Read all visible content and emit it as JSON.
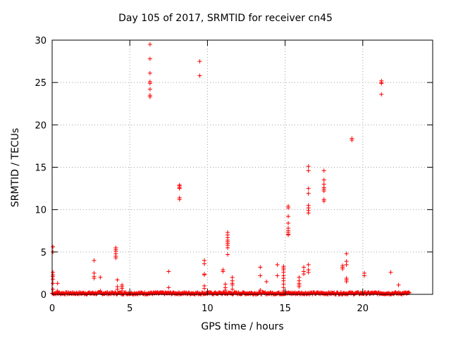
{
  "chart_data": {
    "type": "scatter",
    "title": "Day 105 of 2017, SRMTID for receiver cn45",
    "xlabel": "GPS time / hours",
    "ylabel": "SRMTID / TECUs",
    "xlim": [
      0,
      24.5
    ],
    "ylim": [
      0,
      30
    ],
    "xticks": [
      0,
      5,
      10,
      15,
      20
    ],
    "yticks": [
      0,
      5,
      10,
      15,
      20,
      25,
      30
    ],
    "grid": true,
    "marker": "+",
    "color": "#ff0000",
    "baseline": {
      "x_start": 0.0,
      "x_end": 23.0,
      "y_min": 0.0,
      "y_max": 0.25
    },
    "clusters": [
      {
        "x": 0.05,
        "y": [
          5.6,
          5.0,
          2.6,
          2.3,
          2.1,
          1.8,
          1.3,
          0.6
        ]
      },
      {
        "x": 0.35,
        "y": [
          1.3,
          0.4
        ]
      },
      {
        "x": 2.7,
        "y": [
          4.0,
          2.5,
          2.1,
          1.9
        ]
      },
      {
        "x": 3.1,
        "y": [
          2.0,
          0.4
        ]
      },
      {
        "x": 4.1,
        "y": [
          5.5,
          5.3,
          5.1,
          4.8,
          4.5,
          4.3
        ]
      },
      {
        "x": 4.2,
        "y": [
          1.7,
          0.9,
          0.6
        ]
      },
      {
        "x": 4.5,
        "y": [
          1.1,
          0.9,
          0.7,
          0.4
        ]
      },
      {
        "x": 6.3,
        "y": [
          29.5,
          27.8,
          26.1,
          25.1,
          24.9,
          24.2,
          23.5,
          23.3
        ]
      },
      {
        "x": 7.5,
        "y": [
          2.7,
          0.8
        ]
      },
      {
        "x": 8.2,
        "y": [
          12.9,
          12.8,
          12.6,
          12.5,
          11.4,
          11.2
        ]
      },
      {
        "x": 9.5,
        "y": [
          27.5,
          25.8
        ]
      },
      {
        "x": 9.8,
        "y": [
          4.0,
          3.6,
          2.4,
          2.3,
          1.0,
          0.7
        ]
      },
      {
        "x": 11.0,
        "y": [
          2.9,
          2.7
        ]
      },
      {
        "x": 11.15,
        "y": [
          1.2,
          0.8,
          0.5
        ]
      },
      {
        "x": 11.3,
        "y": [
          7.3,
          7.0,
          6.7,
          6.4,
          6.2,
          6.0,
          5.8,
          5.5,
          4.7
        ]
      },
      {
        "x": 11.6,
        "y": [
          2.0,
          1.6,
          1.3,
          1.1,
          0.6
        ]
      },
      {
        "x": 13.4,
        "y": [
          3.2,
          2.2,
          0.5
        ]
      },
      {
        "x": 13.8,
        "y": [
          1.5
        ]
      },
      {
        "x": 14.5,
        "y": [
          3.5,
          2.2
        ]
      },
      {
        "x": 14.9,
        "y": [
          3.3,
          3.1,
          2.9,
          2.6,
          2.2,
          1.9,
          1.6,
          1.2,
          0.8,
          0.4
        ]
      },
      {
        "x": 15.2,
        "y": [
          10.4,
          10.2,
          9.2,
          8.4,
          7.8,
          7.5,
          7.3,
          7.1,
          7.0
        ]
      },
      {
        "x": 15.9,
        "y": [
          2.0,
          1.6,
          1.3,
          1.1,
          0.9
        ]
      },
      {
        "x": 16.2,
        "y": [
          3.2,
          2.7,
          2.4
        ]
      },
      {
        "x": 16.5,
        "y": [
          15.1,
          14.6,
          12.5,
          11.9,
          10.5,
          10.2,
          9.9,
          9.6,
          3.5,
          2.9,
          2.6
        ]
      },
      {
        "x": 17.5,
        "y": [
          14.6,
          13.5,
          13.0,
          12.6,
          12.4,
          12.2,
          11.2,
          11.0
        ]
      },
      {
        "x": 18.7,
        "y": [
          3.4,
          3.2,
          3.0
        ]
      },
      {
        "x": 18.95,
        "y": [
          4.8,
          3.9,
          3.5,
          1.9,
          1.7,
          1.5
        ]
      },
      {
        "x": 19.3,
        "y": [
          18.4,
          18.2
        ]
      },
      {
        "x": 20.1,
        "y": [
          2.5,
          2.2
        ]
      },
      {
        "x": 21.2,
        "y": [
          25.2,
          25.0,
          24.9,
          23.6
        ]
      },
      {
        "x": 21.8,
        "y": [
          2.6
        ]
      },
      {
        "x": 22.3,
        "y": [
          1.1
        ]
      }
    ]
  }
}
